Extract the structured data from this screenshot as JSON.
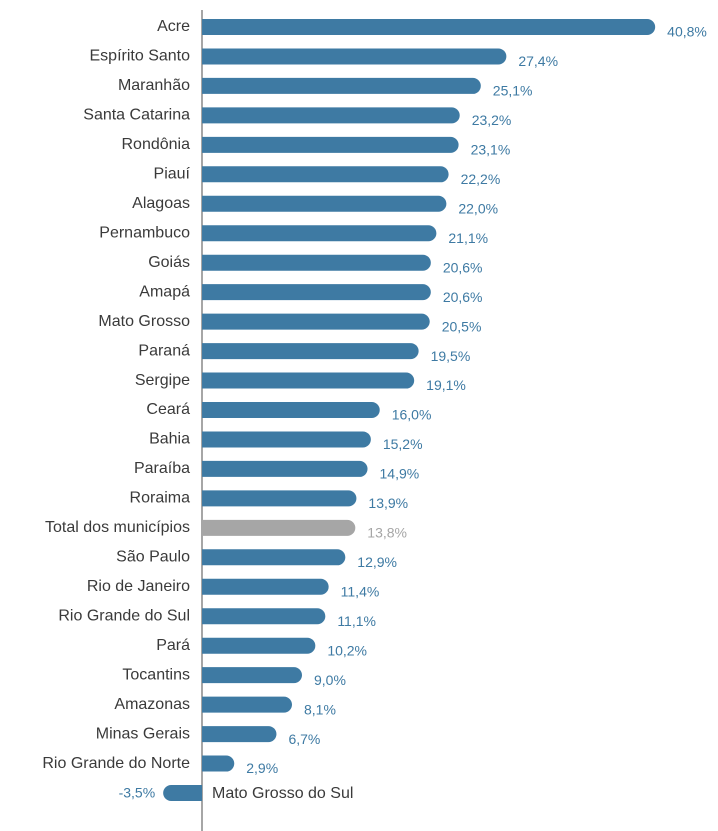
{
  "chart_data": {
    "type": "bar",
    "orientation": "horizontal",
    "categories": [
      "Acre",
      "Espírito Santo",
      "Maranhão",
      "Santa Catarina",
      "Rondônia",
      "Piauí",
      "Alagoas",
      "Pernambuco",
      "Goiás",
      "Amapá",
      "Mato Grosso",
      "Paraná",
      "Sergipe",
      "Ceará",
      "Bahia",
      "Paraíba",
      "Roraima",
      "Total dos municípios",
      "São Paulo",
      "Rio de Janeiro",
      "Rio Grande do Sul",
      "Pará",
      "Tocantins",
      "Amazonas",
      "Minas Gerais",
      "Rio Grande do Norte",
      "Mato Grosso do Sul"
    ],
    "values": [
      40.8,
      27.4,
      25.1,
      23.2,
      23.1,
      22.2,
      22.0,
      21.1,
      20.6,
      20.6,
      20.5,
      19.5,
      19.1,
      16.0,
      15.2,
      14.9,
      13.9,
      13.8,
      12.9,
      11.4,
      11.1,
      10.2,
      9.0,
      8.1,
      6.7,
      2.9,
      -3.5
    ],
    "value_labels": [
      "40,8%",
      "27,4%",
      "25,1%",
      "23,2%",
      "23,1%",
      "22,2%",
      "22,0%",
      "21,1%",
      "20,6%",
      "20,6%",
      "20,5%",
      "19,5%",
      "19,1%",
      "16,0%",
      "15,2%",
      "14,9%",
      "13,9%",
      "13,8%",
      "12,9%",
      "11,4%",
      "11,1%",
      "10,2%",
      "9,0%",
      "8,1%",
      "6,7%",
      "2,9%",
      "-3,5%"
    ],
    "colors": [
      "#3e7aa3",
      "#3e7aa3",
      "#3e7aa3",
      "#3e7aa3",
      "#3e7aa3",
      "#3e7aa3",
      "#3e7aa3",
      "#3e7aa3",
      "#3e7aa3",
      "#3e7aa3",
      "#3e7aa3",
      "#3e7aa3",
      "#3e7aa3",
      "#3e7aa3",
      "#3e7aa3",
      "#3e7aa3",
      "#3e7aa3",
      "#a6a6a6",
      "#3e7aa3",
      "#3e7aa3",
      "#3e7aa3",
      "#3e7aa3",
      "#3e7aa3",
      "#3e7aa3",
      "#3e7aa3",
      "#3e7aa3",
      "#3e7aa3"
    ],
    "xlim": [
      -5,
      42
    ]
  }
}
